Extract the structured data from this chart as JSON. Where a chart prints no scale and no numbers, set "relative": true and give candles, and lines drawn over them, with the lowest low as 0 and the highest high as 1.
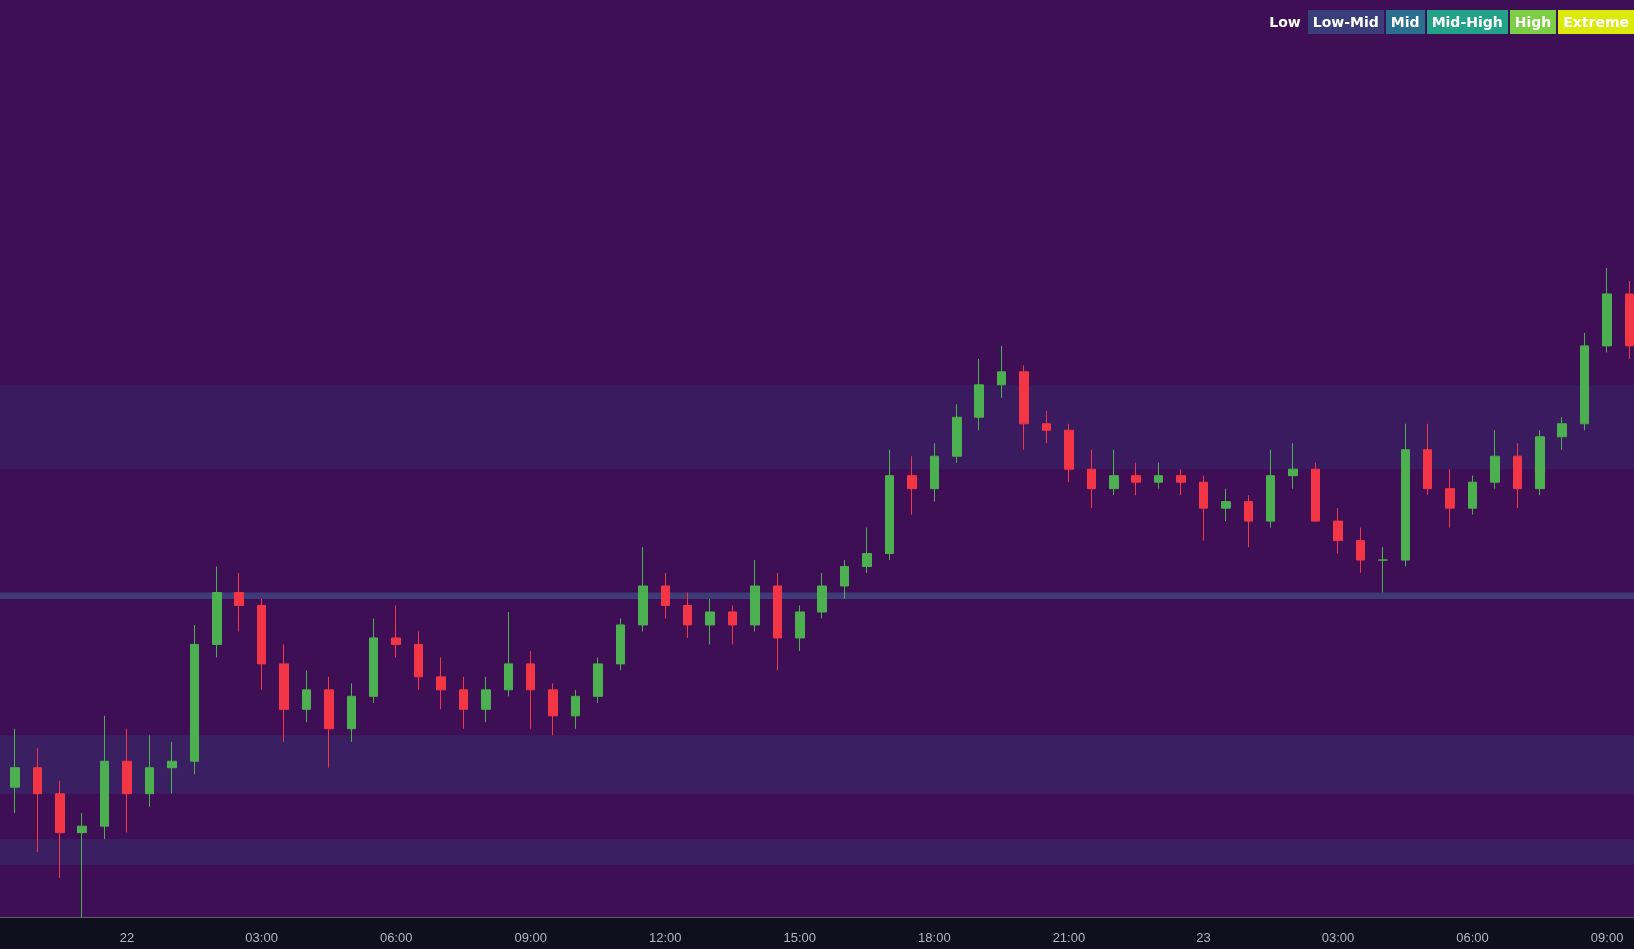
{
  "chart_data": {
    "type": "candlestick",
    "relative": true,
    "x": [
      "--01-21T21:30",
      "--01-21T22:00",
      "--01-21T22:30",
      "--01-21T23:00",
      "--01-21T23:30",
      "--01-22T00:00",
      "--01-22T00:30",
      "--01-22T01:00",
      "--01-22T01:30",
      "--01-22T02:00",
      "--01-22T02:30",
      "--01-22T03:00",
      "--01-22T03:30",
      "--01-22T04:00",
      "--01-22T04:30",
      "--01-22T05:00",
      "--01-22T05:30",
      "--01-22T06:00",
      "--01-22T06:30",
      "--01-22T07:00",
      "--01-22T07:30",
      "--01-22T08:00",
      "--01-22T08:30",
      "--01-22T09:00",
      "--01-22T09:30",
      "--01-22T10:00",
      "--01-22T10:30",
      "--01-22T11:00",
      "--01-22T11:30",
      "--01-22T12:00",
      "--01-22T12:30",
      "--01-22T13:00",
      "--01-22T13:30",
      "--01-22T14:00",
      "--01-22T14:30",
      "--01-22T15:00",
      "--01-22T15:30",
      "--01-22T16:00",
      "--01-22T16:30",
      "--01-22T17:00",
      "--01-22T17:30",
      "--01-22T18:00",
      "--01-22T18:30",
      "--01-22T19:00",
      "--01-22T19:30",
      "--01-22T20:00",
      "--01-22T20:30",
      "--01-22T21:00",
      "--01-22T21:30",
      "--01-22T22:00",
      "--01-22T22:30",
      "--01-22T23:00",
      "--01-22T23:30",
      "--01-23T00:00",
      "--01-23T00:30",
      "--01-23T01:00",
      "--01-23T01:30",
      "--01-23T02:00",
      "--01-23T02:30",
      "--01-23T03:00",
      "--01-23T03:30",
      "--01-23T04:00",
      "--01-23T04:30",
      "--01-23T05:00",
      "--01-23T05:30",
      "--01-23T06:00",
      "--01-23T06:30",
      "--01-23T07:00",
      "--01-23T07:30",
      "--01-23T08:00",
      "--01-23T08:30",
      "--01-23T09:00",
      "--01-23T09:30"
    ],
    "ohlc": [
      [
        0.2,
        0.29,
        0.16,
        0.23
      ],
      [
        0.23,
        0.26,
        0.1,
        0.19
      ],
      [
        0.19,
        0.21,
        0.06,
        0.13
      ],
      [
        0.13,
        0.16,
        0,
        0.14
      ],
      [
        0.14,
        0.31,
        0.12,
        0.24
      ],
      [
        0.24,
        0.29,
        0.13,
        0.19
      ],
      [
        0.19,
        0.28,
        0.17,
        0.23
      ],
      [
        0.23,
        0.27,
        0.19,
        0.24
      ],
      [
        0.24,
        0.45,
        0.22,
        0.42
      ],
      [
        0.42,
        0.54,
        0.4,
        0.5
      ],
      [
        0.5,
        0.53,
        0.44,
        0.48
      ],
      [
        0.48,
        0.49,
        0.35,
        0.39
      ],
      [
        0.39,
        0.42,
        0.27,
        0.32
      ],
      [
        0.32,
        0.38,
        0.3,
        0.35
      ],
      [
        0.35,
        0.37,
        0.23,
        0.29
      ],
      [
        0.29,
        0.36,
        0.27,
        0.34
      ],
      [
        0.34,
        0.46,
        0.33,
        0.43
      ],
      [
        0.43,
        0.48,
        0.4,
        0.42
      ],
      [
        0.42,
        0.44,
        0.35,
        0.37
      ],
      [
        0.37,
        0.4,
        0.32,
        0.35
      ],
      [
        0.35,
        0.37,
        0.29,
        0.32
      ],
      [
        0.32,
        0.37,
        0.3,
        0.35
      ],
      [
        0.35,
        0.47,
        0.34,
        0.39
      ],
      [
        0.39,
        0.41,
        0.29,
        0.35
      ],
      [
        0.35,
        0.36,
        0.28,
        0.31
      ],
      [
        0.31,
        0.35,
        0.29,
        0.34
      ],
      [
        0.34,
        0.4,
        0.33,
        0.39
      ],
      [
        0.39,
        0.46,
        0.38,
        0.45
      ],
      [
        0.45,
        0.57,
        0.44,
        0.51
      ],
      [
        0.51,
        0.53,
        0.46,
        0.48
      ],
      [
        0.48,
        0.5,
        0.43,
        0.45
      ],
      [
        0.45,
        0.49,
        0.42,
        0.47
      ],
      [
        0.47,
        0.48,
        0.42,
        0.45
      ],
      [
        0.45,
        0.55,
        0.44,
        0.51
      ],
      [
        0.51,
        0.53,
        0.38,
        0.43
      ],
      [
        0.43,
        0.48,
        0.41,
        0.47
      ],
      [
        0.47,
        0.53,
        0.46,
        0.51
      ],
      [
        0.51,
        0.55,
        0.49,
        0.54
      ],
      [
        0.54,
        0.6,
        0.53,
        0.56
      ],
      [
        0.56,
        0.72,
        0.55,
        0.68
      ],
      [
        0.68,
        0.71,
        0.62,
        0.66
      ],
      [
        0.66,
        0.73,
        0.64,
        0.71
      ],
      [
        0.71,
        0.79,
        0.7,
        0.77
      ],
      [
        0.77,
        0.86,
        0.75,
        0.82
      ],
      [
        0.82,
        0.88,
        0.8,
        0.84
      ],
      [
        0.84,
        0.85,
        0.72,
        0.76
      ],
      [
        0.76,
        0.78,
        0.73,
        0.75
      ],
      [
        0.75,
        0.76,
        0.67,
        0.69
      ],
      [
        0.69,
        0.72,
        0.63,
        0.66
      ],
      [
        0.66,
        0.72,
        0.65,
        0.68
      ],
      [
        0.68,
        0.7,
        0.65,
        0.67
      ],
      [
        0.67,
        0.7,
        0.66,
        0.68
      ],
      [
        0.68,
        0.69,
        0.65,
        0.67
      ],
      [
        0.67,
        0.68,
        0.58,
        0.63
      ],
      [
        0.63,
        0.66,
        0.61,
        0.64
      ],
      [
        0.64,
        0.65,
        0.57,
        0.61
      ],
      [
        0.61,
        0.72,
        0.6,
        0.68
      ],
      [
        0.68,
        0.73,
        0.66,
        0.69
      ],
      [
        0.69,
        0.7,
        0.61,
        0.61
      ],
      [
        0.61,
        0.63,
        0.56,
        0.58
      ],
      [
        0.58,
        0.6,
        0.53,
        0.55
      ],
      [
        0.55,
        0.57,
        0.5,
        0.55
      ],
      [
        0.55,
        0.76,
        0.54,
        0.72
      ],
      [
        0.72,
        0.76,
        0.65,
        0.66
      ],
      [
        0.66,
        0.69,
        0.6,
        0.63
      ],
      [
        0.63,
        0.68,
        0.62,
        0.67
      ],
      [
        0.67,
        0.75,
        0.66,
        0.71
      ],
      [
        0.71,
        0.73,
        0.63,
        0.66
      ],
      [
        0.66,
        0.75,
        0.65,
        0.74
      ],
      [
        0.74,
        0.77,
        0.72,
        0.76
      ],
      [
        0.76,
        0.9,
        0.75,
        0.88
      ],
      [
        0.88,
        1,
        0.87,
        0.96
      ],
      [
        0.96,
        0.98,
        0.86,
        0.88
      ]
    ],
    "xlim": [
      "--01-21T21:10",
      "--01-23T09:36"
    ],
    "xticks": [
      {
        "value": "--01-22T00:00",
        "label": "22"
      },
      {
        "value": "--01-22T03:00",
        "label": "03:00"
      },
      {
        "value": "--01-22T06:00",
        "label": "06:00"
      },
      {
        "value": "--01-22T09:00",
        "label": "09:00"
      },
      {
        "value": "--01-22T12:00",
        "label": "12:00"
      },
      {
        "value": "--01-22T15:00",
        "label": "15:00"
      },
      {
        "value": "--01-22T18:00",
        "label": "18:00"
      },
      {
        "value": "--01-22T21:00",
        "label": "21:00"
      },
      {
        "value": "--01-23T00:00",
        "label": "23"
      },
      {
        "value": "--01-23T03:00",
        "label": "03:00"
      },
      {
        "value": "--01-23T06:00",
        "label": "06:00"
      },
      {
        "value": "--01-23T09:00",
        "label": "09:00"
      }
    ],
    "bands": [
      {
        "axis": "y",
        "from": 0.69,
        "to": 0.82,
        "color": "#3b1b5f"
      },
      {
        "axis": "y",
        "from": 0.49,
        "to": 0.5,
        "color": "#3f3a78"
      },
      {
        "axis": "y",
        "from": 0.19,
        "to": 0.28,
        "color": "#3b1f63"
      },
      {
        "axis": "y",
        "from": 0.08,
        "to": 0.12,
        "color": "#3b1f63"
      }
    ],
    "annotations": [
      "Low",
      "Low-Mid",
      "Mid",
      "Mid-High",
      "High",
      "Extreme"
    ],
    "grid": false
  }
}
